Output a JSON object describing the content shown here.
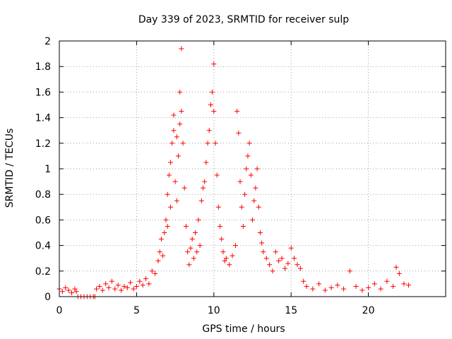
{
  "chart_data": {
    "type": "scatter",
    "title": "Day 339 of 2023, SRMTID for receiver sulp",
    "xlabel": "GPS time / hours",
    "ylabel": "SRMTID / TECUs",
    "xlim": [
      0,
      25
    ],
    "ylim": [
      0,
      2
    ],
    "xticks": [
      0,
      5,
      10,
      15,
      20
    ],
    "xtick_labels": [
      "0",
      "5",
      "10",
      "15",
      "20"
    ],
    "yticks": [
      0,
      0.2,
      0.4,
      0.6,
      0.8,
      1,
      1.2,
      1.4,
      1.6,
      1.8,
      2
    ],
    "ytick_labels": [
      "0",
      "0.2",
      "0.4",
      "0.6",
      "0.8",
      "1",
      "1.2",
      "1.4",
      "1.6",
      "1.8",
      "2"
    ],
    "grid": true,
    "marker": "plus",
    "color": "#ff0000",
    "series": [
      {
        "name": "SRMTID",
        "x": [
          0.0,
          0.2,
          0.4,
          0.6,
          0.8,
          1.0,
          1.1,
          1.2,
          1.4,
          1.6,
          1.8,
          2.0,
          2.2,
          2.3,
          2.4,
          2.6,
          2.8,
          3.0,
          3.2,
          3.4,
          3.6,
          3.8,
          4.0,
          4.2,
          4.4,
          4.6,
          4.8,
          5.0,
          5.2,
          5.4,
          5.6,
          5.8,
          6.0,
          6.2,
          6.4,
          6.5,
          6.6,
          6.7,
          6.8,
          6.9,
          7.0,
          7.0,
          7.1,
          7.2,
          7.2,
          7.3,
          7.4,
          7.4,
          7.5,
          7.6,
          7.6,
          7.7,
          7.8,
          7.8,
          7.9,
          7.9,
          8.0,
          8.1,
          8.2,
          8.3,
          8.4,
          8.5,
          8.6,
          8.7,
          8.8,
          8.9,
          9.0,
          9.1,
          9.2,
          9.3,
          9.4,
          9.5,
          9.6,
          9.7,
          9.8,
          9.9,
          10.0,
          10.0,
          10.1,
          10.2,
          10.3,
          10.4,
          10.5,
          10.6,
          10.7,
          10.8,
          11.0,
          11.2,
          11.4,
          11.5,
          11.6,
          11.7,
          11.8,
          11.9,
          12.0,
          12.1,
          12.2,
          12.3,
          12.4,
          12.5,
          12.6,
          12.7,
          12.8,
          12.9,
          13.0,
          13.1,
          13.2,
          13.4,
          13.6,
          13.8,
          14.0,
          14.2,
          14.4,
          14.6,
          14.8,
          15.0,
          15.2,
          15.4,
          15.6,
          15.8,
          16.0,
          16.4,
          16.8,
          17.2,
          17.6,
          18.0,
          18.4,
          18.8,
          19.2,
          19.6,
          20.0,
          20.4,
          20.8,
          21.2,
          21.6,
          21.8,
          22.0,
          22.3,
          22.6
        ],
        "y": [
          0.06,
          0.04,
          0.07,
          0.05,
          0.03,
          0.06,
          0.04,
          0.0,
          0.0,
          0.0,
          0.0,
          0.0,
          0.0,
          0.0,
          0.06,
          0.08,
          0.05,
          0.1,
          0.07,
          0.12,
          0.06,
          0.09,
          0.05,
          0.08,
          0.07,
          0.11,
          0.06,
          0.08,
          0.12,
          0.09,
          0.14,
          0.1,
          0.2,
          0.18,
          0.28,
          0.35,
          0.45,
          0.32,
          0.5,
          0.6,
          0.55,
          0.8,
          0.95,
          0.7,
          1.05,
          1.2,
          1.42,
          1.3,
          0.9,
          1.25,
          0.75,
          1.1,
          1.35,
          1.6,
          1.94,
          1.45,
          1.2,
          0.85,
          0.55,
          0.35,
          0.25,
          0.38,
          0.45,
          0.3,
          0.5,
          0.35,
          0.6,
          0.4,
          0.75,
          0.85,
          0.9,
          1.05,
          1.2,
          1.3,
          1.5,
          1.6,
          1.82,
          1.45,
          1.2,
          0.95,
          0.7,
          0.55,
          0.45,
          0.35,
          0.28,
          0.3,
          0.25,
          0.32,
          0.4,
          1.45,
          1.28,
          0.9,
          0.7,
          0.55,
          0.8,
          1.0,
          1.1,
          1.2,
          0.95,
          0.6,
          0.75,
          0.85,
          1.0,
          0.7,
          0.5,
          0.42,
          0.35,
          0.3,
          0.25,
          0.2,
          0.35,
          0.28,
          0.3,
          0.22,
          0.26,
          0.38,
          0.3,
          0.25,
          0.22,
          0.12,
          0.08,
          0.06,
          0.1,
          0.05,
          0.07,
          0.09,
          0.06,
          0.2,
          0.08,
          0.05,
          0.07,
          0.1,
          0.06,
          0.12,
          0.08,
          0.23,
          0.18,
          0.1,
          0.09
        ]
      }
    ]
  }
}
